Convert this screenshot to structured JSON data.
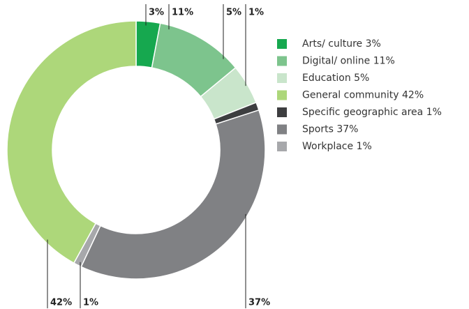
{
  "chart_data": {
    "type": "donut",
    "categories": [
      "Arts/ culture",
      "Digital/ online",
      "Education",
      "Specific geographic area",
      "Sports",
      "Workplace",
      "General community"
    ],
    "values": [
      3,
      11,
      5,
      1,
      37,
      1,
      42
    ],
    "value_labels": [
      "3%",
      "11%",
      "5%",
      "1%",
      "37%",
      "1%",
      "42%"
    ],
    "colors": [
      "#16a84f",
      "#7dc48d",
      "#c9e5cb",
      "#3d3e40",
      "#808184",
      "#a7a8ab",
      "#add77a"
    ],
    "legend": [
      {
        "label": "Arts/ culture 3%",
        "color": "#16a84f"
      },
      {
        "label": "Digital/ online 11%",
        "color": "#7dc48d"
      },
      {
        "label": "Education 5%",
        "color": "#c9e5cb"
      },
      {
        "label": "General community 42%",
        "color": "#add77a"
      },
      {
        "label": "Specific geographic area 1%",
        "color": "#3d3e40"
      },
      {
        "label": "Sports 37%",
        "color": "#808184"
      },
      {
        "label": "Workplace 1%",
        "color": "#a7a8ab"
      }
    ]
  }
}
